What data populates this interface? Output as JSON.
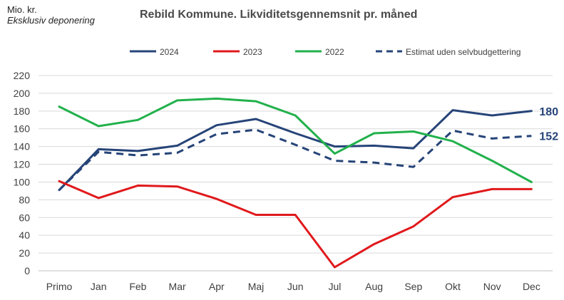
{
  "chart_data": {
    "type": "line",
    "title": "Rebild Kommune. Likviditetsgennemsnit pr. måned",
    "unit_label": "Mio. kr.",
    "unit_sublabel": "Eksklusiv deponering",
    "xlabel": "",
    "ylabel": "",
    "categories": [
      "Primo",
      "Jan",
      "Feb",
      "Mar",
      "Apr",
      "Maj",
      "Jun",
      "Jul",
      "Aug",
      "Sep",
      "Okt",
      "Nov",
      "Dec"
    ],
    "ylim": [
      0,
      220
    ],
    "yticks": [
      0,
      20,
      40,
      60,
      80,
      100,
      120,
      140,
      160,
      180,
      200,
      220
    ],
    "grid": true,
    "legend_position": "top",
    "series": [
      {
        "name": "2024",
        "color": "#264478",
        "dashed": false,
        "values": [
          91,
          137,
          135,
          141,
          164,
          171,
          155,
          140,
          141,
          138,
          181,
          175,
          180
        ]
      },
      {
        "name": "2023",
        "color": "#e0191c",
        "dashed": false,
        "values": [
          101,
          82,
          96,
          95,
          81,
          63,
          63,
          4,
          30,
          50,
          83,
          92,
          92
        ]
      },
      {
        "name": "2022",
        "color": "#22b14c",
        "dashed": false,
        "values": [
          185,
          163,
          170,
          192,
          194,
          191,
          175,
          132,
          155,
          157,
          146,
          124,
          100
        ]
      },
      {
        "name": "Estimat uden selvbudgettering",
        "color": "#264478",
        "dashed": true,
        "values": [
          91,
          134,
          130,
          133,
          154,
          159,
          142,
          124,
          122,
          117,
          158,
          149,
          152
        ]
      }
    ],
    "annotations": [
      {
        "text": "180",
        "series": "2024",
        "category": "Dec",
        "value": 180
      },
      {
        "text": "152",
        "series": "Estimat uden selvbudgettering",
        "category": "Dec",
        "value": 152
      }
    ]
  }
}
